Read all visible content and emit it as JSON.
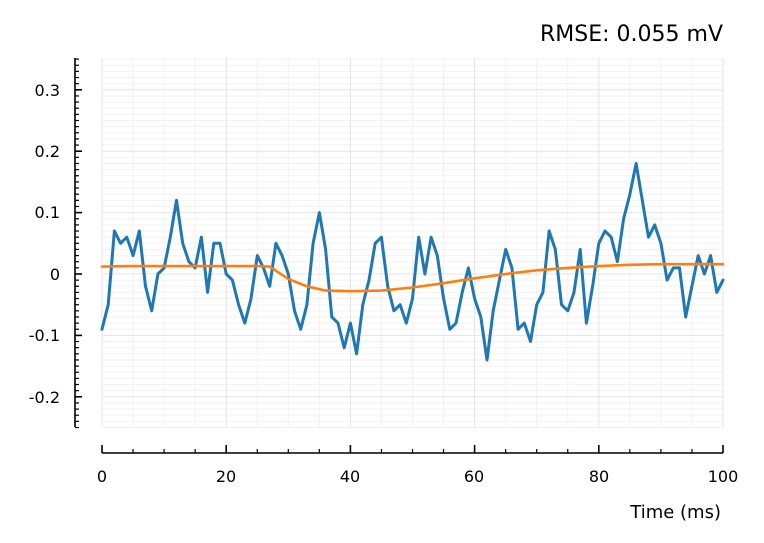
{
  "chart_data": {
    "type": "line",
    "title": "RMSE: 0.055 mV",
    "xlabel": "Time (ms)",
    "ylabel": "",
    "xlim": [
      0,
      100
    ],
    "ylim": [
      -0.25,
      0.35
    ],
    "xticks": [
      0,
      20,
      40,
      60,
      80,
      100
    ],
    "xtick_labels": [
      "0",
      "20",
      "40",
      "60",
      "80",
      "100"
    ],
    "yticks": [
      -0.2,
      -0.1,
      0,
      0.1,
      0.2,
      0.3
    ],
    "ytick_labels": [
      "-0.2",
      "-0.1",
      "0",
      "0.1",
      "0.2",
      "0.3"
    ],
    "grid": true,
    "legend": "none",
    "series": [
      {
        "color": "#1f77b4",
        "x": [
          0,
          1,
          2,
          3,
          4,
          5,
          6,
          7,
          8,
          9,
          10,
          11,
          12,
          13,
          14,
          15,
          16,
          17,
          18,
          19,
          20,
          21,
          22,
          23,
          24,
          25,
          26,
          27,
          28,
          29,
          30,
          31,
          32,
          33,
          34,
          35,
          36,
          37,
          38,
          39,
          40,
          41,
          42,
          43,
          44,
          45,
          46,
          47,
          48,
          49,
          50,
          51,
          52,
          53,
          54,
          55,
          56,
          57,
          58,
          59,
          60,
          61,
          62,
          63,
          64,
          65,
          66,
          67,
          68,
          69,
          70,
          71,
          72,
          73,
          74,
          75,
          76,
          77,
          78,
          79,
          80,
          81,
          82,
          83,
          84,
          85,
          86,
          87,
          88,
          89,
          90,
          91,
          92,
          93,
          94,
          95,
          96,
          97,
          98,
          99,
          100
        ],
        "y": [
          -0.09,
          -0.05,
          0.07,
          0.05,
          0.06,
          0.03,
          0.07,
          -0.02,
          -0.06,
          0.0,
          0.01,
          0.06,
          0.12,
          0.05,
          0.02,
          0.01,
          0.06,
          -0.03,
          0.05,
          0.05,
          0.0,
          -0.01,
          -0.05,
          -0.08,
          -0.04,
          0.03,
          0.01,
          -0.02,
          0.05,
          0.03,
          0.0,
          -0.06,
          -0.09,
          -0.05,
          0.05,
          0.1,
          0.04,
          -0.07,
          -0.08,
          -0.12,
          -0.08,
          -0.13,
          -0.05,
          -0.01,
          0.05,
          0.06,
          -0.02,
          -0.06,
          -0.05,
          -0.08,
          -0.04,
          0.06,
          0.0,
          0.06,
          0.03,
          -0.04,
          -0.09,
          -0.08,
          -0.03,
          0.01,
          -0.04,
          -0.07,
          -0.14,
          -0.06,
          -0.01,
          0.04,
          0.01,
          -0.09,
          -0.08,
          -0.11,
          -0.05,
          -0.03,
          0.07,
          0.04,
          -0.05,
          -0.06,
          -0.03,
          0.04,
          -0.08,
          -0.02,
          0.05,
          0.07,
          0.06,
          0.02,
          0.09,
          0.13,
          0.18,
          0.12,
          0.06,
          0.08,
          0.05,
          -0.01,
          0.01,
          0.01,
          -0.07,
          -0.02,
          0.03,
          0.0,
          0.03,
          -0.03,
          -0.01
        ]
      },
      {
        "color": "#ff7f0e",
        "x": [
          0,
          5,
          10,
          15,
          20,
          25,
          27,
          30,
          33,
          36,
          40,
          45,
          50,
          55,
          60,
          65,
          70,
          75,
          80,
          85,
          90,
          95,
          100
        ],
        "y": [
          0.012,
          0.013,
          0.013,
          0.013,
          0.013,
          0.013,
          0.012,
          -0.008,
          -0.02,
          -0.027,
          -0.028,
          -0.027,
          -0.022,
          -0.015,
          -0.007,
          0.0,
          0.006,
          0.01,
          0.013,
          0.015,
          0.016,
          0.016,
          0.016
        ]
      }
    ]
  }
}
